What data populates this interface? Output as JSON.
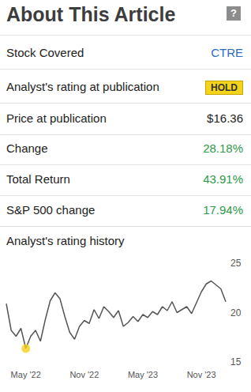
{
  "header": {
    "title": "About This Article",
    "help_icon": "?"
  },
  "rows": [
    {
      "label": "Stock Covered",
      "value": "CTRE",
      "color": "#2b6cc4"
    },
    {
      "label": "Analyst's rating at publication",
      "value": "HOLD",
      "badge_color": "#f3d41b"
    },
    {
      "label": "Price at publication",
      "value": "$16.36"
    },
    {
      "label": "Change",
      "value": "28.18%",
      "color": "#2e9b48"
    },
    {
      "label": "Total Return",
      "value": "43.91%",
      "color": "#2e9b48"
    },
    {
      "label": "S&P 500 change",
      "value": "17.94%",
      "color": "#2e9b48"
    }
  ],
  "chart_data": {
    "type": "line",
    "title": "Analyst's rating history",
    "categories": [
      null,
      null,
      null,
      null,
      "May '22",
      null,
      null,
      null,
      null,
      null,
      null,
      null,
      null,
      null,
      null,
      null,
      "Nov '22",
      null,
      null,
      null,
      null,
      null,
      null,
      null,
      null,
      null,
      null,
      null,
      "May '23",
      null,
      null,
      null,
      null,
      null,
      null,
      null,
      null,
      null,
      null,
      null,
      "Nov '23",
      null,
      null,
      null,
      null,
      null
    ],
    "values": [
      20.9,
      18.2,
      17.6,
      18.4,
      16.36,
      17.6,
      18.2,
      17.1,
      19.3,
      21.2,
      22.0,
      21.4,
      19.6,
      18.0,
      17.3,
      18.6,
      19.2,
      18.9,
      20.3,
      19.4,
      20.6,
      20.1,
      19.5,
      20.2,
      18.6,
      19.0,
      19.6,
      19.1,
      19.8,
      19.5,
      20.1,
      19.8,
      20.6,
      20.2,
      21.1,
      20.0,
      20.3,
      20.6,
      19.9,
      21.0,
      22.1,
      22.9,
      23.2,
      22.8,
      22.4,
      21.1
    ],
    "color": "#555555",
    "ylim": [
      15,
      25
    ],
    "yticks": [
      15,
      20,
      25
    ],
    "grid": false,
    "highlight": {
      "category": "May '22",
      "value": 16.36,
      "color": "#f2d21b"
    }
  }
}
